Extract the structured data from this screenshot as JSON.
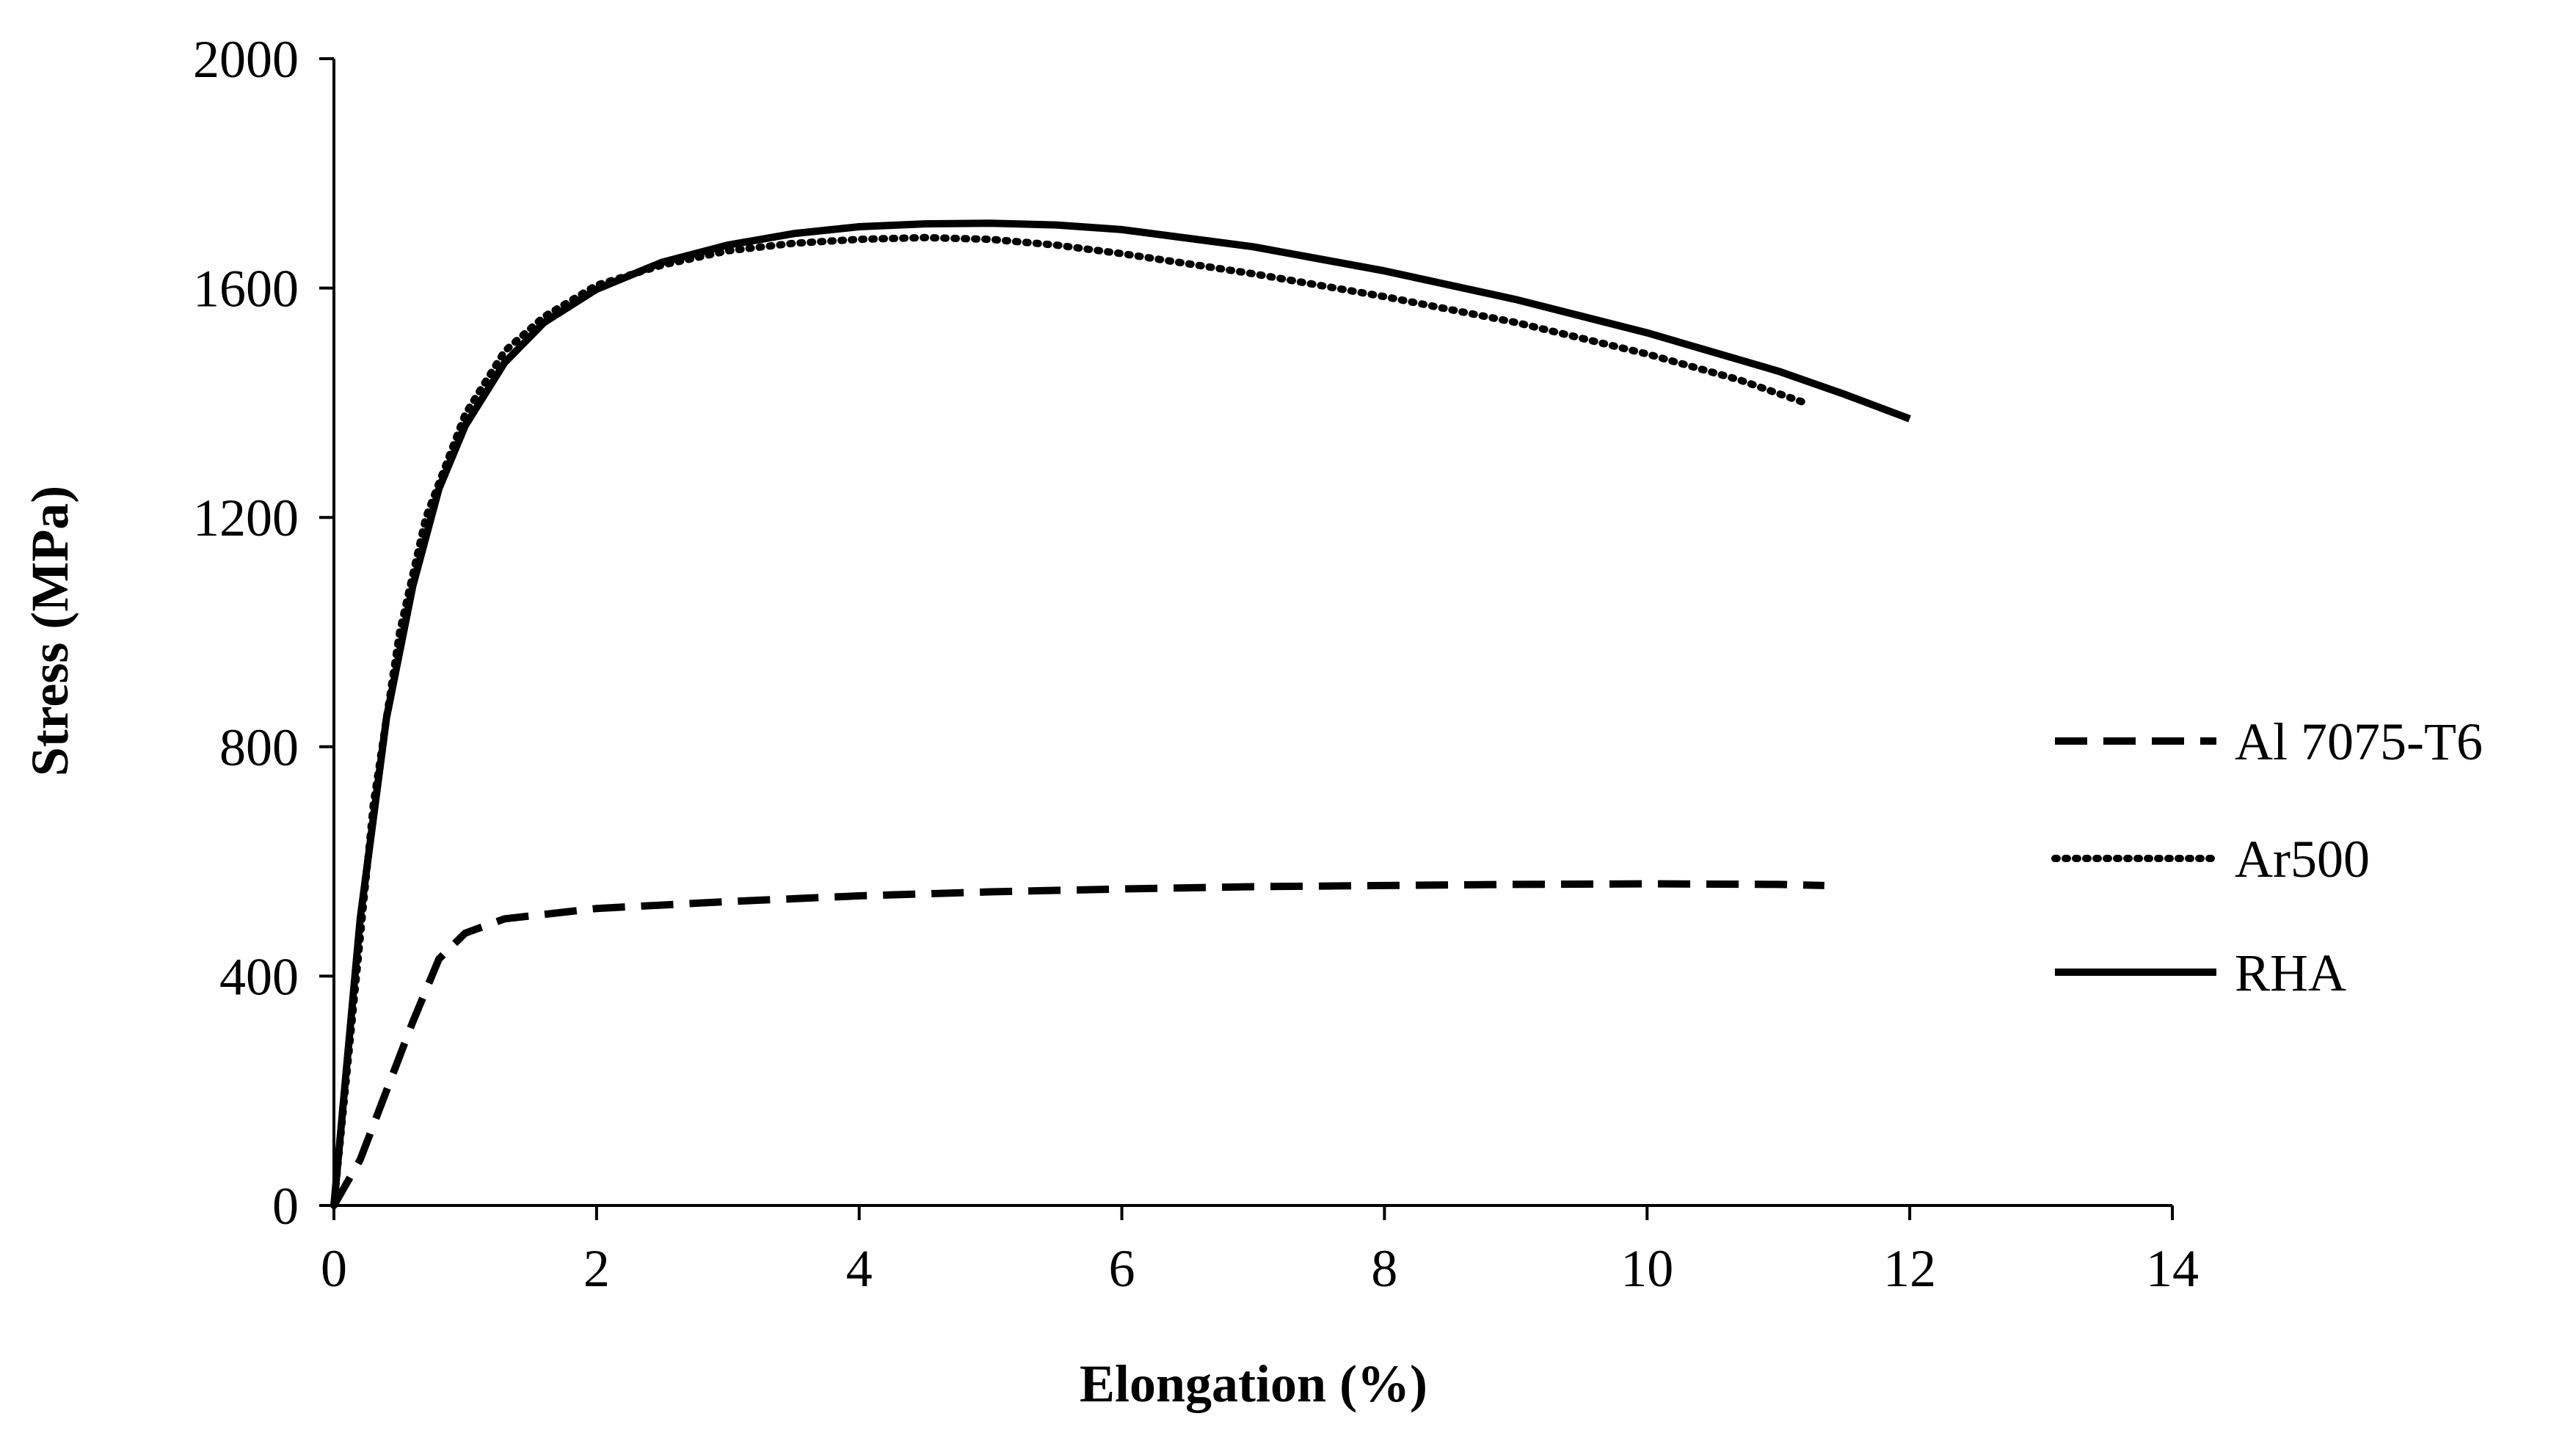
{
  "chart_data": {
    "type": "line",
    "title": "",
    "xlabel": "Elongation (%)",
    "ylabel": "Stress (MPa)",
    "xlim": [
      0,
      14
    ],
    "ylim": [
      0,
      2000
    ],
    "xticks": [
      0,
      2,
      4,
      6,
      8,
      10,
      12,
      14
    ],
    "yticks": [
      0,
      400,
      800,
      1200,
      1600,
      2000
    ],
    "grid": false,
    "legend_position": "right",
    "series": [
      {
        "name": "Al 7075-T6",
        "style": "dashed",
        "color": "#000000",
        "points": [
          [
            0,
            0
          ],
          [
            0.2,
            80
          ],
          [
            0.4,
            200
          ],
          [
            0.6,
            320
          ],
          [
            0.8,
            430
          ],
          [
            1.0,
            475
          ],
          [
            1.3,
            500
          ],
          [
            2,
            518
          ],
          [
            3,
            530
          ],
          [
            4,
            540
          ],
          [
            5,
            547
          ],
          [
            6,
            552
          ],
          [
            7,
            556
          ],
          [
            8,
            558
          ],
          [
            9,
            560
          ],
          [
            10,
            561
          ],
          [
            11,
            560
          ],
          [
            11.35,
            558
          ]
        ]
      },
      {
        "name": "Ar500",
        "style": "dotted",
        "color": "#000000",
        "points": [
          [
            0,
            0
          ],
          [
            0.3,
            700
          ],
          [
            0.5,
            1000
          ],
          [
            0.7,
            1200
          ],
          [
            1.0,
            1380
          ],
          [
            1.3,
            1490
          ],
          [
            1.6,
            1550
          ],
          [
            2,
            1605
          ],
          [
            2.5,
            1640
          ],
          [
            3,
            1665
          ],
          [
            3.5,
            1678
          ],
          [
            4,
            1685
          ],
          [
            4.5,
            1688
          ],
          [
            5,
            1685
          ],
          [
            5.5,
            1675
          ],
          [
            6,
            1660
          ],
          [
            7,
            1625
          ],
          [
            8,
            1585
          ],
          [
            9,
            1540
          ],
          [
            10,
            1485
          ],
          [
            10.7,
            1440
          ],
          [
            11.2,
            1400
          ]
        ]
      },
      {
        "name": "RHA",
        "style": "solid",
        "color": "#000000",
        "points": [
          [
            0,
            0
          ],
          [
            0.2,
            500
          ],
          [
            0.4,
            850
          ],
          [
            0.6,
            1080
          ],
          [
            0.8,
            1250
          ],
          [
            1.0,
            1360
          ],
          [
            1.3,
            1470
          ],
          [
            1.6,
            1540
          ],
          [
            2,
            1598
          ],
          [
            2.5,
            1645
          ],
          [
            3,
            1675
          ],
          [
            3.5,
            1695
          ],
          [
            4,
            1707
          ],
          [
            4.5,
            1712
          ],
          [
            5,
            1713
          ],
          [
            5.5,
            1710
          ],
          [
            6,
            1702
          ],
          [
            7,
            1672
          ],
          [
            8,
            1630
          ],
          [
            9,
            1580
          ],
          [
            10,
            1522
          ],
          [
            11,
            1455
          ],
          [
            11.5,
            1415
          ],
          [
            12,
            1372
          ]
        ]
      }
    ]
  }
}
